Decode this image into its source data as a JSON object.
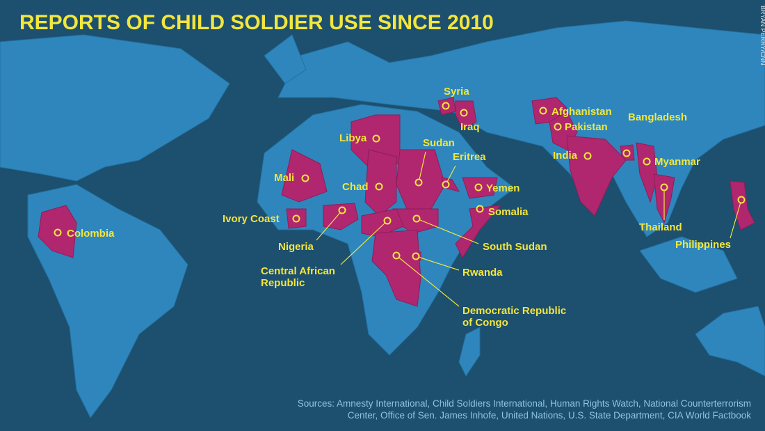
{
  "title": "REPORTS OF CHILD SOLDIER USE SINCE 2010",
  "credit": "BRYAN PERRY/CNN",
  "countries": [
    {
      "lines": [
        "Syria"
      ]
    },
    {
      "lines": [
        "Iraq"
      ]
    },
    {
      "lines": [
        "Afghanistan"
      ]
    },
    {
      "lines": [
        "Pakistan"
      ]
    },
    {
      "lines": [
        "Bangladesh"
      ]
    },
    {
      "lines": [
        "Libya"
      ]
    },
    {
      "lines": [
        "Sudan"
      ]
    },
    {
      "lines": [
        "Eritrea"
      ]
    },
    {
      "lines": [
        "India"
      ]
    },
    {
      "lines": [
        "Myanmar"
      ]
    },
    {
      "lines": [
        "Mali"
      ]
    },
    {
      "lines": [
        "Chad"
      ]
    },
    {
      "lines": [
        "Yemen"
      ]
    },
    {
      "lines": [
        "Thailand"
      ]
    },
    {
      "lines": [
        "Colombia"
      ]
    },
    {
      "lines": [
        "Somalia"
      ]
    },
    {
      "lines": [
        "Ivory Coast"
      ]
    },
    {
      "lines": [
        "Nigeria"
      ]
    },
    {
      "lines": [
        "South Sudan"
      ]
    },
    {
      "lines": [
        "Central African",
        "Republic"
      ]
    },
    {
      "lines": [
        "Rwanda"
      ]
    },
    {
      "lines": [
        "Democratic Republic",
        "of Congo"
      ]
    },
    {
      "lines": [
        "Philippines"
      ]
    }
  ],
  "sources": [
    "Sources: Amnesty International, Child Soldiers International, Human Rights Watch, National Counterterrorism",
    "Center, Office of Sen. James Inhofe, United Nations, U.S. State Department, CIA World Factbook"
  ]
}
